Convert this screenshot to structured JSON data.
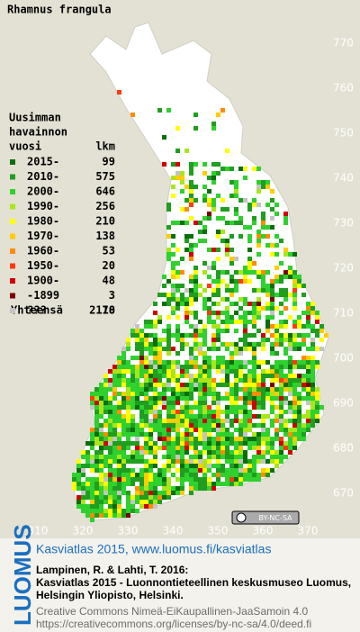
{
  "title": "Rhamnus frangula",
  "legend": {
    "header": [
      "Uusimman",
      "havainnon"
    ],
    "period_heading": "vuosi",
    "count_heading": "lkm",
    "rows": [
      {
        "label": "2015-",
        "count": "99",
        "color": "#0a6e0a"
      },
      {
        "label": "2010-",
        "count": "575",
        "color": "#1f9e1f"
      },
      {
        "label": "2000-",
        "count": "646",
        "color": "#2ed12e"
      },
      {
        "label": "1990-",
        "count": "256",
        "color": "#a8e61a"
      },
      {
        "label": "1980-",
        "count": "210",
        "color": "#ffff00"
      },
      {
        "label": "1970-",
        "count": "138",
        "color": "#ffcc00"
      },
      {
        "label": "1960-",
        "count": "53",
        "color": "#ff8c00"
      },
      {
        "label": "1950-",
        "count": "20",
        "color": "#ff3b0f"
      },
      {
        "label": "1900-",
        "count": "48",
        "color": "#d00000"
      },
      {
        "label": "-1899",
        "count": "3",
        "color": "#7a0000"
      },
      {
        "label": "???",
        "count": "70",
        "color": "#c4c4c4"
      }
    ],
    "total_label": "Yhteensä",
    "total": "2118"
  },
  "map_axes": {
    "northing_ticks": [
      770,
      760,
      750,
      740,
      730,
      720,
      710,
      700,
      690,
      680,
      670
    ],
    "easting_ticks": [
      310,
      320,
      330,
      340,
      350,
      360,
      370
    ]
  },
  "license_badge": "BY-NC-SA",
  "footer": {
    "logo": "LUOMUS",
    "site": "Kasviatlas 2015, www.luomus.fi/kasviatlas",
    "citation_authors": "Lampinen, R. & Lahti, T. 2016:",
    "citation_lines": [
      "Kasviatlas 2015 - Luonnontieteellinen keskusmuseo Luomus,",
      "Helsingin Yliopisto, Helsinki."
    ],
    "license": "Creative Commons Nimeä-EiKaupallinen-JaaSamoin 4.0",
    "license_url": "https://creativecommons.org/licenses/by-nc-sa/4.0/deed.fi"
  }
}
